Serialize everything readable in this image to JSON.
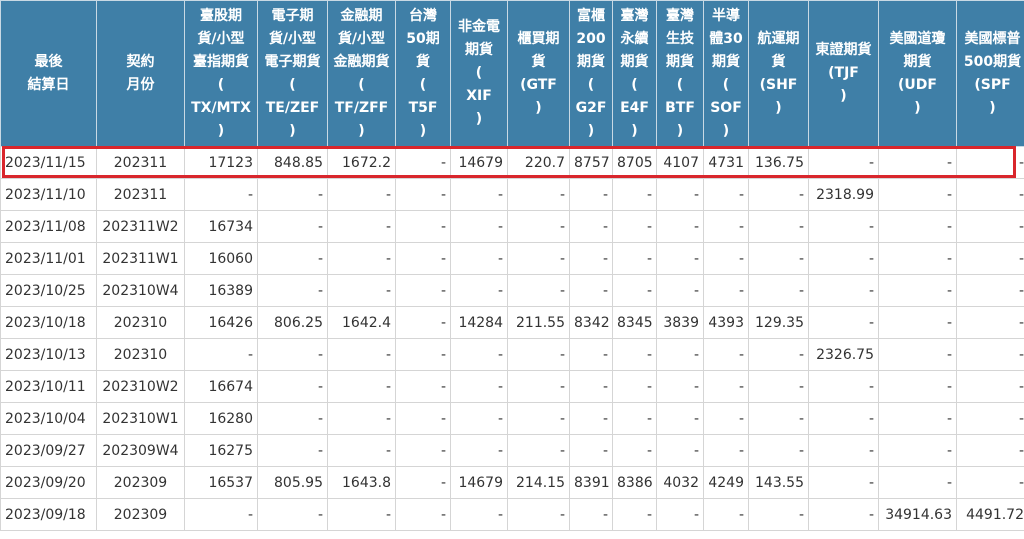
{
  "columns": [
    "最後\n結算日",
    "契約\n月份",
    "臺股期\n貨/小型\n臺指期貨\n(\nTX/MTX\n)",
    "電子期\n貨/小型\n電子期貨\n(\nTE/ZEF\n)",
    "金融期\n貨/小型\n金融期貨\n(\nTF/ZFF\n)",
    "台灣\n50期\n貨\n(\nT5F\n)",
    "非金電\n期貨\n(\nXIF\n)",
    "櫃買期\n貨\n(GTF\n)",
    "富櫃\n200\n期貨\n(\nG2F\n)",
    "臺灣\n永續\n期貨\n(\nE4F\n)",
    "臺灣\n生技\n期貨\n(\nBTF\n)",
    "半導\n體30\n期貨\n(\nSOF\n)",
    "航運期\n貨\n(SHF\n)",
    "東證期貨\n(TJF\n)",
    "美國道瓊\n期貨\n(UDF\n)",
    "美國標普\n500期貨\n(SPF\n)"
  ],
  "rows": [
    [
      "2023/11/15",
      "202311",
      "17123",
      "848.85",
      "1672.2",
      "-",
      "14679",
      "220.7",
      "8757",
      "8705",
      "4107",
      "4731",
      "136.75",
      "-",
      "-",
      "-"
    ],
    [
      "2023/11/10",
      "202311",
      "-",
      "-",
      "-",
      "-",
      "-",
      "-",
      "-",
      "-",
      "-",
      "-",
      "-",
      "2318.99",
      "-",
      "-"
    ],
    [
      "2023/11/08",
      "202311W2",
      "16734",
      "-",
      "-",
      "-",
      "-",
      "-",
      "-",
      "-",
      "-",
      "-",
      "-",
      "-",
      "-",
      "-"
    ],
    [
      "2023/11/01",
      "202311W1",
      "16060",
      "-",
      "-",
      "-",
      "-",
      "-",
      "-",
      "-",
      "-",
      "-",
      "-",
      "-",
      "-",
      "-"
    ],
    [
      "2023/10/25",
      "202310W4",
      "16389",
      "-",
      "-",
      "-",
      "-",
      "-",
      "-",
      "-",
      "-",
      "-",
      "-",
      "-",
      "-",
      "-"
    ],
    [
      "2023/10/18",
      "202310",
      "16426",
      "806.25",
      "1642.4",
      "-",
      "14284",
      "211.55",
      "8342",
      "8345",
      "3839",
      "4393",
      "129.35",
      "-",
      "-",
      "-"
    ],
    [
      "2023/10/13",
      "202310",
      "-",
      "-",
      "-",
      "-",
      "-",
      "-",
      "-",
      "-",
      "-",
      "-",
      "-",
      "2326.75",
      "-",
      "-"
    ],
    [
      "2023/10/11",
      "202310W2",
      "16674",
      "-",
      "-",
      "-",
      "-",
      "-",
      "-",
      "-",
      "-",
      "-",
      "-",
      "-",
      "-",
      "-"
    ],
    [
      "2023/10/04",
      "202310W1",
      "16280",
      "-",
      "-",
      "-",
      "-",
      "-",
      "-",
      "-",
      "-",
      "-",
      "-",
      "-",
      "-",
      "-"
    ],
    [
      "2023/09/27",
      "202309W4",
      "16275",
      "-",
      "-",
      "-",
      "-",
      "-",
      "-",
      "-",
      "-",
      "-",
      "-",
      "-",
      "-",
      "-"
    ],
    [
      "2023/09/20",
      "202309",
      "16537",
      "805.95",
      "1643.8",
      "-",
      "14679",
      "214.15",
      "8391",
      "8386",
      "4032",
      "4249",
      "143.55",
      "-",
      "-",
      "-"
    ],
    [
      "2023/09/18",
      "202309",
      "-",
      "-",
      "-",
      "-",
      "-",
      "-",
      "-",
      "-",
      "-",
      "-",
      "-",
      "-",
      "34914.63",
      "4491.72"
    ]
  ],
  "highlighted_row": 0,
  "colors": {
    "header_bg": "#3f7fa7",
    "header_text": "#ffffff",
    "highlight_border": "#d9262c",
    "grid": "#d5d5d5"
  }
}
